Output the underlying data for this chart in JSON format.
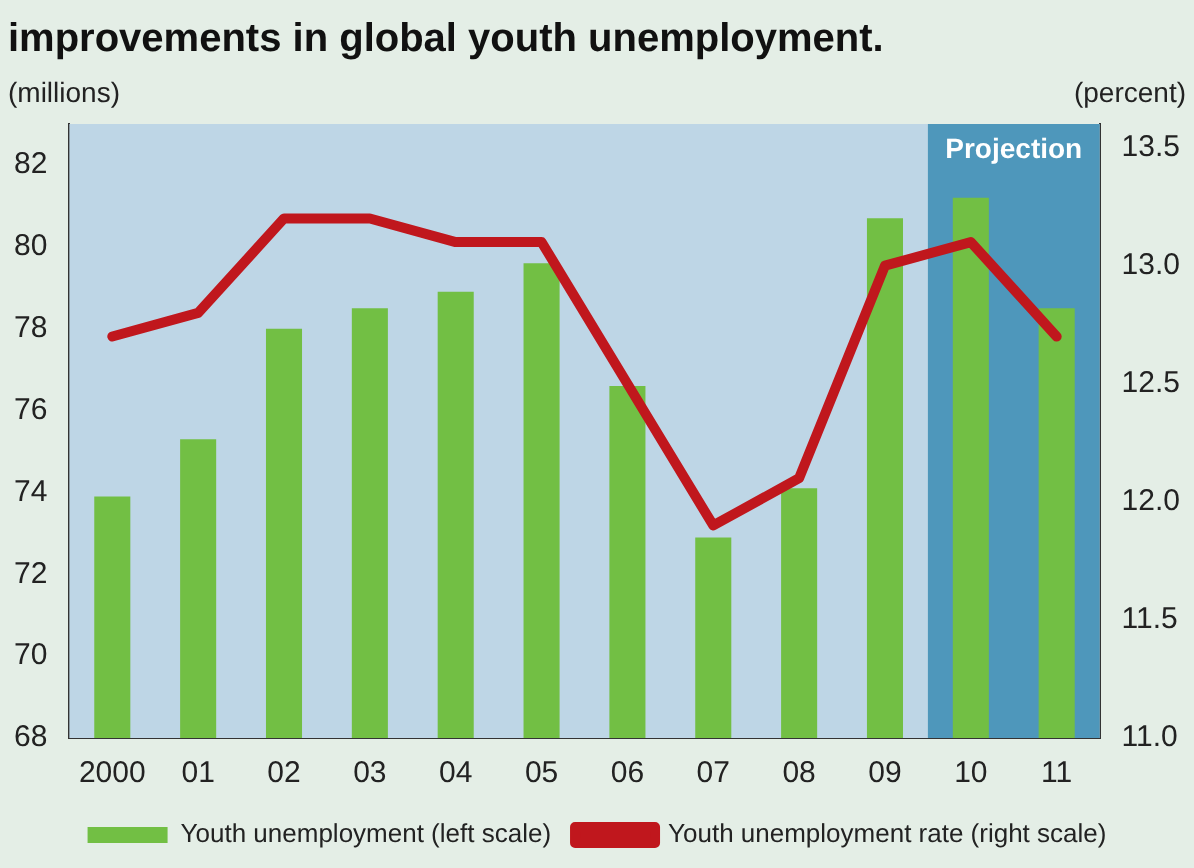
{
  "chart_data": {
    "type": "bar",
    "title": "improvements in global youth unemployment.",
    "ylabel": "(millions)",
    "y2label": "(percent)",
    "categories": [
      "2000",
      "01",
      "02",
      "03",
      "04",
      "05",
      "06",
      "07",
      "08",
      "09",
      "10",
      "11"
    ],
    "series": [
      {
        "name": "Youth unemployment (left scale)",
        "color": "#72bf44",
        "values": [
          73.9,
          75.3,
          78.0,
          78.5,
          78.9,
          79.6,
          76.6,
          72.9,
          74.1,
          80.7,
          81.2,
          78.5
        ]
      },
      {
        "name": "Youth unemployment rate (right scale)",
        "type": "line",
        "axis": "y2",
        "color": "#c0171d",
        "values": [
          12.7,
          12.8,
          13.2,
          13.2,
          13.1,
          13.1,
          12.5,
          11.9,
          12.1,
          13.0,
          13.1,
          12.7
        ]
      }
    ],
    "ylim": [
      68,
      83
    ],
    "yticks": [
      68,
      70,
      72,
      74,
      76,
      78,
      80,
      82
    ],
    "y2lim": [
      11.0,
      13.6
    ],
    "y2ticks": [
      {
        "value": 11,
        "label": "11.0"
      },
      {
        "value": 11.5,
        "label": "11.5"
      },
      {
        "value": 12,
        "label": "12.0"
      },
      {
        "value": 12.5,
        "label": "12.5"
      },
      {
        "value": 13,
        "label": "13.0"
      },
      {
        "value": 13.5,
        "label": "13.5"
      }
    ],
    "bands": [
      {
        "axis": "x",
        "from": "10",
        "to": "11",
        "label": "Projection",
        "color": "#4e97bb"
      }
    ],
    "legend": "bottom",
    "grid": false,
    "marker": "none",
    "line_style": "solid"
  }
}
